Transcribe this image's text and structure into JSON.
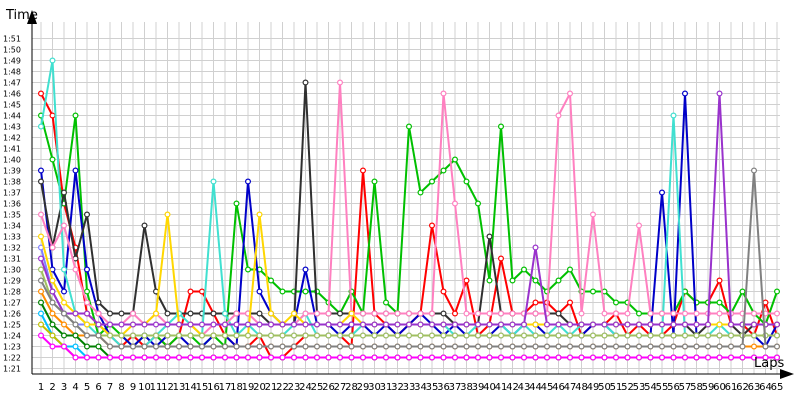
{
  "chart_data": {
    "type": "line",
    "title": "",
    "xlabel": "Laps",
    "ylabel": "Time",
    "x_ticks": [
      "1",
      "2",
      "3",
      "4",
      "5",
      "6",
      "7",
      "8",
      "9",
      "10",
      "11",
      "12",
      "13",
      "14",
      "15",
      "16",
      "17",
      "18",
      "19",
      "20",
      "21",
      "22",
      "23",
      "24",
      "25",
      "26",
      "27",
      "28",
      "29",
      "30",
      "31",
      "32",
      "33",
      "34",
      "35",
      "36",
      "37",
      "38",
      "39",
      "40",
      "41",
      "42",
      "43",
      "44",
      "45",
      "46",
      "47",
      "48",
      "49",
      "50",
      "51",
      "52",
      "53",
      "54",
      "55",
      "56",
      "57",
      "58",
      "59",
      "60",
      "61",
      "62",
      "63",
      "64",
      "65"
    ],
    "y_ticks": [
      "1:21",
      "1:22",
      "1:23",
      "1:24",
      "1:25",
      "1:26",
      "1:27",
      "1:28",
      "1:29",
      "1:30",
      "1:31",
      "1:32",
      "1:33",
      "1:34",
      "1:35",
      "1:36",
      "1:37",
      "1:38",
      "1:39",
      "1:40",
      "1:41",
      "1:42",
      "1:43",
      "1:44",
      "1:45",
      "1:46",
      "1:47",
      "1:48",
      "1:49",
      "1:50",
      "1:51"
    ],
    "x_range": [
      1,
      65
    ],
    "y_range_seconds": [
      80.5,
      112.5
    ],
    "grid": true,
    "legend": "none",
    "series": [
      {
        "color": "#ff0000",
        "values": [
          106,
          104,
          96,
          92,
          86,
          85,
          84,
          83,
          84,
          83,
          84,
          83,
          84,
          88,
          88,
          86,
          84,
          83,
          83,
          84,
          82,
          82,
          83,
          84,
          84,
          84,
          84,
          83,
          99,
          86,
          85,
          84,
          85,
          86,
          94,
          88,
          86,
          89,
          84,
          85,
          91,
          86,
          86,
          87,
          87,
          86,
          87,
          84,
          85,
          85,
          86,
          84,
          85,
          84,
          84,
          85,
          88,
          87,
          87,
          89,
          85,
          85,
          84,
          87,
          84
        ]
      },
      {
        "color": "#00c000",
        "values": [
          104,
          100,
          96,
          104,
          88,
          84,
          85,
          84,
          83,
          84,
          84,
          83,
          84,
          84,
          83,
          84,
          83,
          96,
          90,
          90,
          89,
          88,
          88,
          88,
          88,
          87,
          86,
          88,
          86,
          98,
          87,
          86,
          103,
          97,
          98,
          99,
          100,
          98,
          96,
          89,
          103,
          89,
          90,
          89,
          88,
          89,
          90,
          88,
          88,
          88,
          87,
          87,
          86,
          86,
          86,
          86,
          88,
          87,
          87,
          87,
          86,
          88,
          86,
          85,
          88
        ]
      },
      {
        "color": "#0000c8",
        "values": [
          99,
          90,
          88,
          99,
          90,
          86,
          84,
          84,
          83,
          84,
          83,
          84,
          84,
          83,
          83,
          84,
          84,
          83,
          98,
          88,
          86,
          85,
          85,
          90,
          85,
          85,
          84,
          85,
          85,
          84,
          85,
          84,
          85,
          86,
          85,
          84,
          85,
          84,
          84,
          84,
          85,
          84,
          85,
          85,
          84,
          84,
          84,
          84,
          85,
          85,
          84,
          84,
          84,
          84,
          97,
          84,
          106,
          84,
          84,
          84,
          84,
          84,
          84,
          83,
          85
        ]
      },
      {
        "color": "#303030",
        "values": [
          98,
          92,
          97,
          91,
          95,
          87,
          86,
          86,
          86,
          94,
          88,
          86,
          86,
          86,
          86,
          86,
          86,
          86,
          86,
          86,
          85,
          85,
          85,
          107,
          86,
          86,
          86,
          86,
          86,
          86,
          86,
          86,
          86,
          86,
          86,
          86,
          85,
          85,
          85,
          93,
          86,
          86,
          86,
          86,
          86,
          86,
          85,
          85,
          85,
          85,
          85,
          85,
          85,
          85,
          85,
          85,
          85,
          84,
          85,
          85,
          85,
          84,
          85,
          85,
          85
        ]
      },
      {
        "color": "#40e0d0",
        "values": [
          103,
          109,
          90,
          86,
          85,
          84,
          84,
          83,
          83,
          83,
          84,
          85,
          86,
          85,
          84,
          98,
          86,
          84,
          85,
          84,
          84,
          84,
          85,
          86,
          84,
          84,
          84,
          84,
          85,
          85,
          85,
          85,
          85,
          85,
          85,
          85,
          84,
          84,
          85,
          85,
          85,
          84,
          85,
          84,
          84,
          85,
          84,
          85,
          85,
          85,
          84,
          84,
          84,
          84,
          84,
          104,
          84,
          84,
          84,
          85,
          84,
          84,
          84,
          84,
          84
        ]
      },
      {
        "color": "#ff80c0",
        "values": [
          95,
          92,
          94,
          90,
          87,
          86,
          85,
          85,
          86,
          85,
          86,
          85,
          85,
          85,
          84,
          85,
          85,
          86,
          86,
          85,
          85,
          85,
          85,
          86,
          86,
          86,
          107,
          86,
          86,
          86,
          86,
          86,
          86,
          86,
          86,
          106,
          96,
          86,
          86,
          86,
          86,
          86,
          86,
          86,
          86,
          104,
          106,
          86,
          95,
          86,
          86,
          86,
          94,
          86,
          86,
          86,
          86,
          86,
          86,
          86,
          86,
          86,
          86,
          86,
          86
        ]
      },
      {
        "color": "#8080ff",
        "values": [
          92,
          88,
          86,
          85,
          85,
          85,
          84,
          84,
          84,
          84,
          84,
          84,
          84,
          84,
          84,
          84,
          84,
          84,
          84,
          84,
          84,
          84,
          84,
          84,
          84,
          84,
          84,
          84,
          84,
          84,
          84,
          84,
          84,
          84,
          84,
          84,
          84,
          84,
          84,
          84,
          84,
          84,
          84,
          84,
          84,
          84,
          84,
          84,
          84,
          84,
          84,
          84,
          84,
          84,
          84,
          84,
          84,
          84,
          84,
          84,
          84,
          84,
          84,
          84,
          84
        ]
      },
      {
        "color": "#ffd700",
        "values": [
          93,
          89,
          87,
          86,
          85,
          85,
          84,
          84,
          85,
          85,
          86,
          95,
          85,
          85,
          84,
          84,
          84,
          84,
          84,
          95,
          86,
          85,
          86,
          85,
          85,
          85,
          85,
          86,
          85,
          85,
          85,
          85,
          85,
          85,
          85,
          85,
          85,
          85,
          85,
          85,
          85,
          85,
          85,
          85,
          85,
          85,
          85,
          85,
          85,
          85,
          85,
          85,
          85,
          85,
          85,
          85,
          85,
          85,
          85,
          85,
          85,
          85,
          85,
          85,
          85
        ]
      },
      {
        "color": "#a0c060",
        "values": [
          90,
          87,
          86,
          85,
          84,
          84,
          84,
          84,
          84,
          84,
          84,
          84,
          84,
          84,
          84,
          84,
          84,
          84,
          84,
          84,
          84,
          84,
          84,
          84,
          84,
          84,
          84,
          84,
          84,
          84,
          84,
          84,
          84,
          84,
          84,
          84,
          84,
          84,
          84,
          84,
          84,
          84,
          84,
          84,
          84,
          84,
          84,
          84,
          84,
          84,
          84,
          84,
          84,
          84,
          84,
          84,
          84,
          84,
          84,
          84,
          84,
          84,
          84,
          84,
          84
        ]
      },
      {
        "color": "#9932cc",
        "values": [
          91,
          88,
          86,
          86,
          86,
          85,
          85,
          85,
          85,
          85,
          85,
          85,
          85,
          85,
          85,
          85,
          85,
          85,
          85,
          85,
          85,
          85,
          85,
          85,
          85,
          85,
          85,
          85,
          85,
          85,
          85,
          85,
          85,
          85,
          85,
          85,
          85,
          85,
          85,
          85,
          85,
          85,
          85,
          92,
          85,
          85,
          85,
          85,
          85,
          85,
          85,
          85,
          85,
          85,
          85,
          85,
          85,
          85,
          85,
          106,
          85,
          85,
          85,
          85,
          85
        ]
      },
      {
        "color": "#ff8c00",
        "values": [
          88,
          86,
          85,
          84,
          84,
          84,
          83,
          83,
          83,
          83,
          83,
          83,
          83,
          83,
          83,
          83,
          83,
          83,
          83,
          83,
          83,
          83,
          83,
          83,
          83,
          83,
          83,
          83,
          83,
          83,
          83,
          83,
          83,
          83,
          83,
          83,
          83,
          83,
          83,
          83,
          83,
          83,
          83,
          83,
          83,
          83,
          83,
          83,
          83,
          83,
          83,
          83,
          83,
          83,
          83,
          83,
          83,
          83,
          83,
          83,
          83,
          83,
          83,
          83,
          83
        ]
      },
      {
        "color": "#808080",
        "values": [
          89,
          87,
          86,
          85,
          84,
          84,
          83,
          83,
          83,
          83,
          83,
          83,
          83,
          83,
          83,
          83,
          83,
          83,
          83,
          83,
          83,
          83,
          83,
          83,
          83,
          83,
          83,
          83,
          83,
          83,
          83,
          83,
          83,
          83,
          83,
          83,
          83,
          83,
          83,
          83,
          83,
          83,
          83,
          83,
          83,
          83,
          83,
          83,
          83,
          83,
          83,
          83,
          83,
          83,
          83,
          83,
          83,
          83,
          83,
          83,
          83,
          83,
          99,
          83,
          83
        ]
      },
      {
        "color": "#008000",
        "values": [
          87,
          85,
          84,
          84,
          83,
          83,
          82,
          82,
          82,
          82,
          82,
          82,
          82,
          82,
          82,
          82,
          82,
          82,
          82,
          82,
          82,
          82,
          82,
          82,
          82,
          82,
          82,
          82,
          82,
          82,
          82,
          82,
          82,
          82,
          82,
          82,
          82,
          82,
          82,
          82,
          82,
          82,
          82,
          82,
          82,
          82,
          82,
          82,
          82,
          82,
          82,
          82,
          82,
          82,
          82,
          82,
          82,
          82,
          82,
          82,
          82,
          82,
          82,
          82,
          82
        ]
      },
      {
        "color": "#00bfff",
        "values": [
          86,
          84,
          83,
          83,
          82,
          82,
          82,
          82,
          82,
          82,
          82,
          82,
          82,
          82,
          82,
          82,
          82,
          82,
          82,
          82,
          82,
          82,
          82,
          82,
          82,
          82,
          82,
          82,
          82,
          82,
          82,
          82,
          82,
          82,
          82,
          82,
          82,
          82,
          82,
          82,
          82,
          82,
          82,
          82,
          82,
          82,
          82,
          82,
          82,
          82,
          82,
          82,
          82,
          82,
          82,
          82,
          82,
          82,
          82,
          82,
          82,
          82,
          82,
          82,
          82
        ]
      },
      {
        "color": "#c0c000",
        "values": [
          85,
          84,
          83,
          82,
          82,
          82,
          82,
          82,
          82,
          82,
          82,
          82,
          82,
          82,
          82,
          82,
          82,
          82,
          82,
          82,
          82,
          82,
          82,
          82,
          82,
          82,
          82,
          82,
          82,
          82,
          82,
          82,
          82,
          82,
          82,
          82,
          82,
          82,
          82,
          82,
          82,
          82,
          82,
          82,
          82,
          82,
          82,
          82,
          82,
          82,
          82,
          82,
          82,
          82,
          82,
          82,
          82,
          82,
          82,
          82,
          82,
          82,
          82,
          82,
          82
        ]
      },
      {
        "color": "#ff00ff",
        "values": [
          84,
          83,
          83,
          82,
          82,
          82,
          82,
          82,
          82,
          82,
          82,
          82,
          82,
          82,
          82,
          82,
          82,
          82,
          82,
          82,
          82,
          82,
          82,
          82,
          82,
          82,
          82,
          82,
          82,
          82,
          82,
          82,
          82,
          82,
          82,
          82,
          82,
          82,
          82,
          82,
          82,
          82,
          82,
          82,
          82,
          82,
          82,
          82,
          82,
          82,
          82,
          82,
          82,
          82,
          82,
          82,
          82,
          82,
          82,
          82,
          82,
          82,
          82,
          82,
          82
        ]
      }
    ]
  }
}
